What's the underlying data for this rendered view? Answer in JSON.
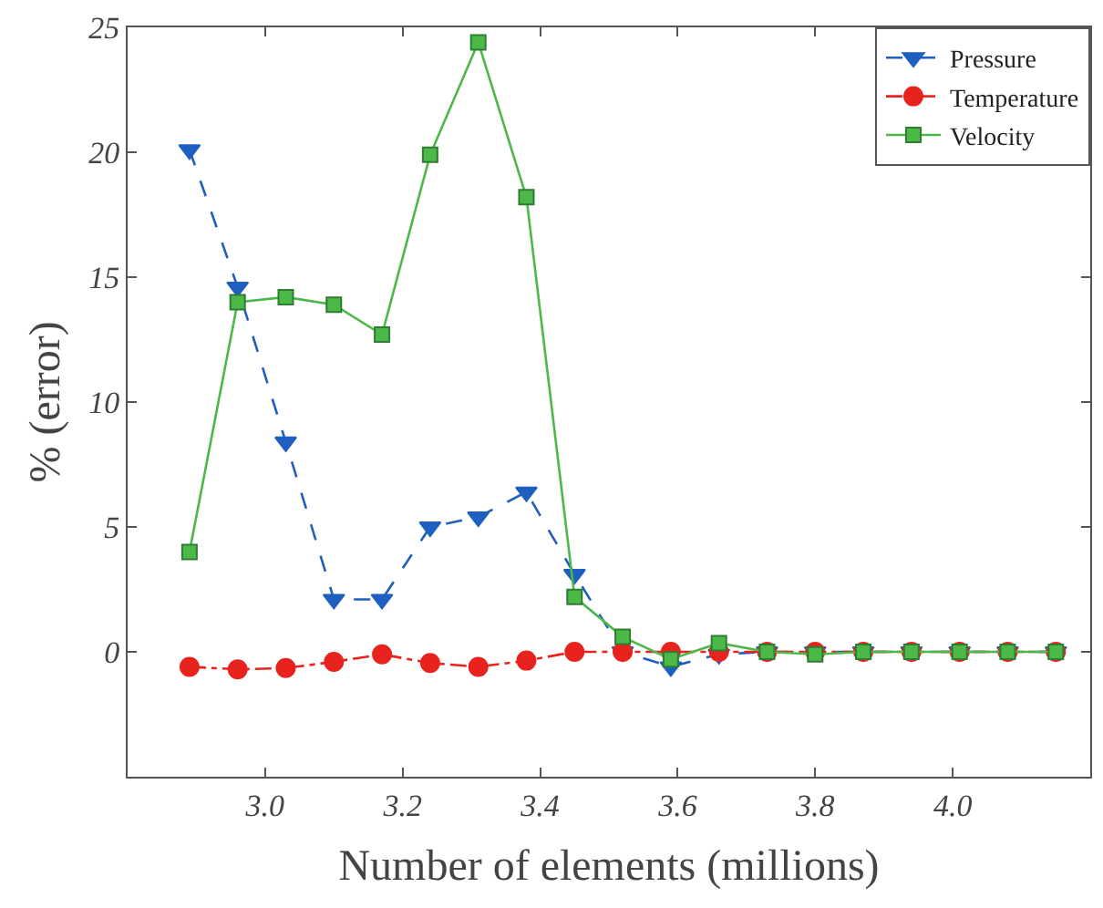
{
  "chart_data": {
    "type": "line",
    "xlabel": "Number of elements (millions)",
    "ylabel": "% (error)",
    "x": [
      2.89,
      2.96,
      3.03,
      3.1,
      3.17,
      3.24,
      3.31,
      3.38,
      3.45,
      3.52,
      3.59,
      3.66,
      3.73,
      3.8,
      3.87,
      3.94,
      4.01,
      4.08,
      4.15
    ],
    "series": [
      {
        "name": "Pressure",
        "color": "#1f5fbf",
        "marker": "triangle-down",
        "line_style": "dashed",
        "values": [
          20.1,
          14.6,
          8.4,
          2.1,
          2.1,
          5.0,
          5.4,
          6.4,
          3.1,
          0.0,
          -0.6,
          -0.1,
          0.0,
          0.0,
          0.0,
          0.0,
          0.0,
          0.0,
          0.0
        ]
      },
      {
        "name": "Temperature",
        "color": "#e8231e",
        "marker": "circle",
        "line_style": "dashdot",
        "values": [
          -0.6,
          -0.7,
          -0.65,
          -0.4,
          -0.1,
          -0.45,
          -0.6,
          -0.35,
          0.0,
          0.0,
          0.0,
          0.0,
          0.0,
          0.0,
          0.0,
          0.0,
          0.0,
          0.0,
          0.0
        ]
      },
      {
        "name": "Velocity",
        "color": "#4cb848",
        "marker": "square",
        "line_style": "solid",
        "values": [
          4.0,
          14.0,
          14.2,
          13.9,
          12.7,
          19.9,
          24.4,
          18.2,
          2.2,
          0.6,
          -0.3,
          0.35,
          0.0,
          -0.1,
          0.0,
          0.0,
          0.0,
          0.0,
          0.0
        ]
      }
    ],
    "xlim": [
      2.8,
      4.2
    ],
    "xticks": [
      {
        "value": 3.0,
        "label": "3.0"
      },
      {
        "value": 3.2,
        "label": "3.2"
      },
      {
        "value": 3.4,
        "label": "3.4"
      },
      {
        "value": 3.6,
        "label": "3.6"
      },
      {
        "value": 3.8,
        "label": "3.8"
      },
      {
        "value": 4.0,
        "label": "4.0"
      }
    ],
    "ylim": [
      -5,
      25
    ],
    "yticks": [
      {
        "value": -5,
        "label": null
      },
      0,
      5,
      10,
      15,
      20,
      25
    ],
    "legend": "top right"
  }
}
